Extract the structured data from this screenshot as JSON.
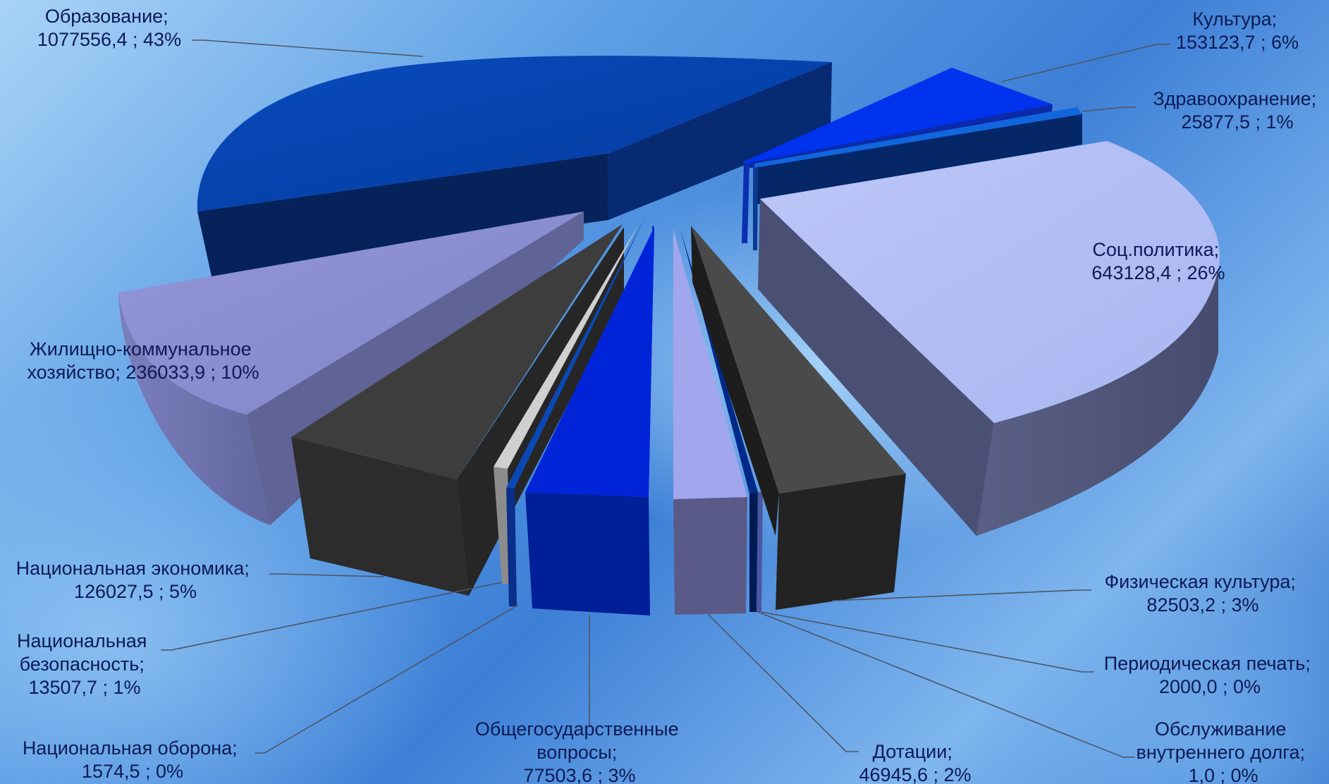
{
  "chart_data": {
    "type": "pie",
    "style": "3d-exploded",
    "slices": [
      {
        "key": "obr",
        "line1": "Образование;",
        "line2": "1077556,4 ; 43%",
        "value": 1077556.4,
        "percent": 43,
        "color": "#0541ad"
      },
      {
        "key": "kult",
        "line1": "Культура;",
        "line2": "153123,7 ; 6%",
        "value": 153123.7,
        "percent": 6,
        "color": "#0034ef"
      },
      {
        "key": "zdr",
        "line1": "Здравоохранение;",
        "line2": "25877,5 ; 1%",
        "value": 25877.5,
        "percent": 1,
        "color": "#0a5bd6"
      },
      {
        "key": "soc",
        "line1": "Соц.политика;",
        "line2": "643128,4 ; 26%",
        "value": 643128.4,
        "percent": 26,
        "color": "#b3bff5"
      },
      {
        "key": "fiz",
        "line1": "Физическая культура;",
        "line2": "82503,2 ; 3%",
        "value": 82503.2,
        "percent": 3,
        "color": "#3e3e3e"
      },
      {
        "key": "per",
        "line1": "Периодическая печать;",
        "line2": "2000,0 ; 0%",
        "value": 2000.0,
        "percent": 0,
        "color": "#6e7fc7"
      },
      {
        "key": "obs",
        "line1": "Обслуживание",
        "line2": "внутреннего долга;",
        "line3": "1,0 ; 0%",
        "value": 1.0,
        "percent": 0,
        "color": "#002a8a"
      },
      {
        "key": "dot",
        "line1": "Дотации;",
        "line2": "46945,6 ; 2%",
        "value": 46945.6,
        "percent": 2,
        "color": "#a1a6ed"
      },
      {
        "key": "obg",
        "line1": "Общегосударственные",
        "line2": "вопросы;",
        "line3": "77503,6 ; 3%",
        "value": 77503.6,
        "percent": 3,
        "color": "#0024d8"
      },
      {
        "key": "obor",
        "line1": "Национальная оборона;",
        "line2": "1574,5 ; 0%",
        "value": 1574.5,
        "percent": 0,
        "color": "#0a48b5"
      },
      {
        "key": "bez",
        "line1": "Национальная",
        "line2": "безопасность;",
        "line3": "13507,7 ; 1%",
        "value": 13507.7,
        "percent": 1,
        "color": "#cfcfcf"
      },
      {
        "key": "eko",
        "line1": "Национальная экономика;",
        "line2": "126027,5 ; 5%",
        "value": 126027.5,
        "percent": 5,
        "color": "#3c3c3c"
      },
      {
        "key": "zhkh",
        "line1": "Жилищно-коммунальное",
        "line2": "хозяйство; 236033,9 ; 10%",
        "value": 236033.9,
        "percent": 10,
        "color": "#8a8ccd"
      }
    ]
  }
}
